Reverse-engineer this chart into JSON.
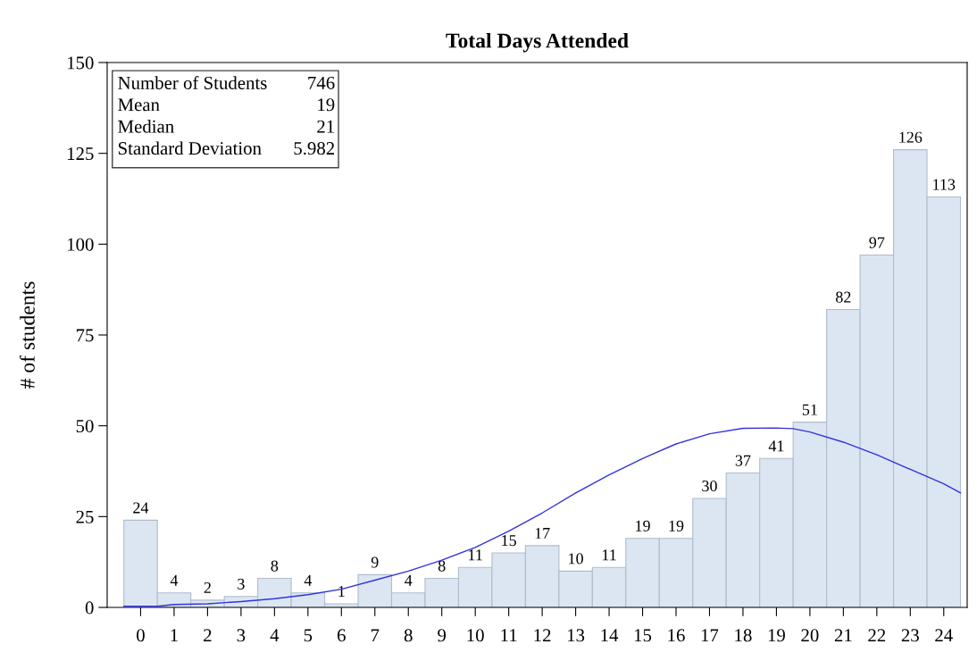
{
  "chart_data": {
    "type": "histogram",
    "title": "Total Days Attended",
    "ylabel": "# of students",
    "bins": [
      -0.5,
      0.5,
      1.5,
      2.5,
      3.5,
      4.5,
      5.5,
      6.5,
      7.5,
      8.5,
      9.5,
      10.5,
      11.5,
      12.5,
      13.5,
      14.5,
      15.5,
      16.5,
      17.5,
      18.5,
      19.5,
      20.5,
      21.5,
      22.5,
      23.5,
      24.5
    ],
    "values": [
      24,
      4,
      2,
      3,
      8,
      4,
      1,
      9,
      4,
      8,
      11,
      15,
      17,
      10,
      11,
      19,
      19,
      30,
      37,
      41,
      51,
      82,
      97,
      126,
      113
    ],
    "color": "#dce6f2",
    "value_labels": [
      "24",
      "4",
      "2",
      "3",
      "8",
      "4",
      "1",
      "9",
      "4",
      "8",
      "11",
      "15",
      "17",
      "10",
      "11",
      "19",
      "19",
      "30",
      "37",
      "41",
      "51",
      "82",
      "97",
      "126",
      "113"
    ],
    "series": [
      {
        "type": "line",
        "color": "#3333dd",
        "x": [
          -0.5,
          0.5,
          1,
          2,
          3,
          4,
          5,
          6,
          7,
          8,
          9,
          10,
          11,
          12,
          13,
          14,
          15,
          16,
          17,
          18,
          19,
          19.5,
          20,
          21,
          22,
          23,
          24,
          24.5
        ],
        "values": [
          0.3,
          0.3,
          0.8,
          1,
          1.6,
          2.4,
          3.5,
          5,
          7.5,
          10,
          13,
          16.5,
          21,
          26,
          31.5,
          36.5,
          41,
          45,
          47.8,
          49.3,
          49.4,
          49.2,
          48.3,
          45.5,
          42,
          38,
          34,
          31.5
        ]
      }
    ],
    "annotations": [
      "Number of Students",
      "746",
      "Mean",
      "19",
      "Median",
      "21",
      "Standard Deviation",
      "5.982"
    ],
    "xlim": [
      -1,
      24.7
    ],
    "xticks": [
      0,
      1,
      2,
      3,
      4,
      5,
      6,
      7,
      8,
      9,
      10,
      11,
      12,
      13,
      14,
      15,
      16,
      17,
      18,
      19,
      20,
      21,
      22,
      23,
      24
    ],
    "ylim": [
      0,
      150
    ],
    "yticks": [
      0,
      25,
      50,
      75,
      100,
      125,
      150
    ],
    "grid": false,
    "legend": false
  }
}
